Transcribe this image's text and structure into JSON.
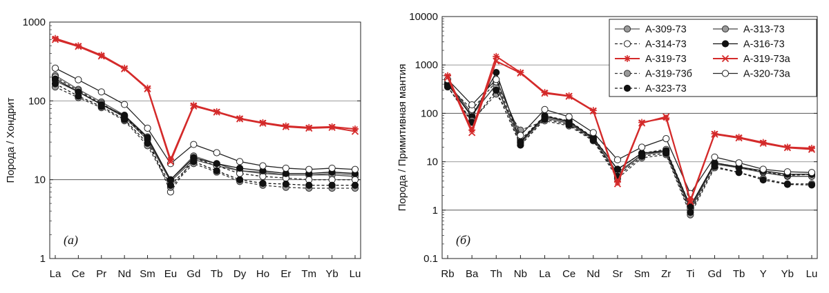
{
  "figure": {
    "panels": [
      "(a)",
      "(б)"
    ]
  },
  "chart_data": [
    {
      "type": "line",
      "panel_label": "(a)",
      "ylabel": "Порода / Хондрит",
      "y_scale": "log",
      "ylim": [
        1,
        1000
      ],
      "y_ticks": [
        "1",
        "10",
        "100",
        "1000"
      ],
      "grid": "horizontal at decades",
      "categories": [
        "La",
        "Ce",
        "Pr",
        "Nd",
        "Sm",
        "Eu",
        "Gd",
        "Tb",
        "Dy",
        "Ho",
        "Er",
        "Tm",
        "Yb",
        "Lu"
      ],
      "series": [
        {
          "name": "A-309-73",
          "color": "#555555",
          "marker": "circle-gray",
          "dash": "solid",
          "values": [
            210,
            140,
            97,
            66,
            35,
            10,
            20,
            16,
            13,
            12.5,
            11.5,
            11.5,
            12,
            11.5
          ]
        },
        {
          "name": "A-313-73",
          "color": "#444444",
          "marker": "circle-gray",
          "dash": "solid",
          "values": [
            180,
            130,
            90,
            62,
            32,
            9.5,
            18,
            15,
            13,
            12,
            11.5,
            11.5,
            11.5,
            11
          ]
        },
        {
          "name": "A-314-73",
          "color": "#222222",
          "marker": "circle-white",
          "dash": "dashed",
          "values": [
            200,
            135,
            93,
            63,
            33,
            7,
            19,
            15,
            12,
            11,
            10.5,
            10,
            10,
            10
          ]
        },
        {
          "name": "A-316-73",
          "color": "#111111",
          "marker": "circle-black",
          "dash": "solid",
          "values": [
            190,
            130,
            90,
            65,
            34,
            10,
            19,
            16,
            14,
            13,
            12,
            12,
            12.5,
            12
          ]
        },
        {
          "name": "A-319-73",
          "color": "#d42a2a",
          "marker": "star",
          "dash": "solid",
          "values": [
            620,
            500,
            380,
            260,
            145,
            18,
            88,
            73,
            60,
            53,
            48,
            46,
            47,
            44
          ]
        },
        {
          "name": "A-319-73a",
          "color": "#d42a2a",
          "marker": "x",
          "dash": "solid",
          "values": [
            600,
            490,
            370,
            255,
            142,
            17,
            86,
            72,
            59,
            52,
            47,
            45,
            46,
            41
          ]
        },
        {
          "name": "A-319-73б",
          "color": "#333333",
          "marker": "circle-gray",
          "dash": "dashed",
          "values": [
            150,
            110,
            82,
            56,
            27,
            8,
            16,
            12.5,
            9.5,
            8.5,
            8,
            7.8,
            7.8,
            7.8
          ]
        },
        {
          "name": "A-320-73a",
          "color": "#222222",
          "marker": "circle-white",
          "dash": "solid",
          "values": [
            260,
            185,
            130,
            90,
            45,
            16,
            28,
            22,
            17,
            15,
            14,
            13.5,
            14,
            13.5
          ]
        },
        {
          "name": "A-323-73",
          "color": "#111111",
          "marker": "circle-black",
          "dash": "dashed",
          "values": [
            165,
            115,
            85,
            58,
            29,
            8.5,
            17,
            13,
            10,
            9,
            8.8,
            8.5,
            8.5,
            8.5
          ]
        }
      ]
    },
    {
      "type": "line",
      "panel_label": "(б)",
      "ylabel": "Порода / Примитивная мантия",
      "y_scale": "log",
      "ylim": [
        0.1,
        10000
      ],
      "y_ticks": [
        "0.1",
        "1",
        "10",
        "100",
        "1000",
        "10000"
      ],
      "grid": "horizontal at decades",
      "legend": {
        "placement": "top-right",
        "columns": 2
      },
      "categories": [
        "Rb",
        "Ba",
        "Th",
        "Nb",
        "La",
        "Ce",
        "Nd",
        "Sr",
        "Sm",
        "Zr",
        "Ti",
        "Gd",
        "Tb",
        "Y",
        "Yb",
        "Lu"
      ],
      "series": [
        {
          "name": "A-309-73",
          "color": "#555555",
          "marker": "circle-gray",
          "dash": "solid",
          "values": [
            420,
            90,
            400,
            25,
            85,
            65,
            30,
            6,
            14,
            17,
            1.1,
            9,
            7.5,
            6,
            5,
            5
          ]
        },
        {
          "name": "A-313-73",
          "color": "#444444",
          "marker": "circle-gray",
          "dash": "solid",
          "values": [
            430,
            100,
            380,
            24,
            80,
            62,
            29,
            5.5,
            14,
            16,
            1.0,
            9,
            7.5,
            6,
            5,
            5
          ]
        },
        {
          "name": "A-314-73",
          "color": "#222222",
          "marker": "circle-white",
          "dash": "dashed",
          "values": [
            380,
            120,
            450,
            28,
            90,
            70,
            32,
            7,
            15,
            18,
            1.2,
            9.5,
            7.8,
            6.2,
            5.2,
            5.5
          ]
        },
        {
          "name": "A-316-73",
          "color": "#111111",
          "marker": "circle-black",
          "dash": "solid",
          "values": [
            400,
            85,
            700,
            26,
            88,
            68,
            31,
            7,
            15,
            17,
            1.2,
            9.5,
            7.8,
            6.5,
            5.5,
            5.5
          ]
        },
        {
          "name": "A-319-73",
          "color": "#d42a2a",
          "marker": "star",
          "dash": "solid",
          "values": [
            600,
            45,
            1500,
            700,
            270,
            230,
            115,
            3.8,
            65,
            80,
            1.6,
            38,
            32,
            25,
            20,
            19
          ]
        },
        {
          "name": "A-319-73a",
          "color": "#d42a2a",
          "marker": "x",
          "dash": "solid",
          "values": [
            550,
            40,
            1200,
            680,
            260,
            225,
            112,
            3.5,
            63,
            85,
            1.5,
            37,
            31,
            24,
            19.5,
            18
          ]
        },
        {
          "name": "A-319-73б",
          "color": "#333333",
          "marker": "circle-gray",
          "dash": "dashed",
          "values": [
            350,
            70,
            250,
            45,
            70,
            55,
            27,
            4.5,
            12,
            14,
            0.8,
            7.5,
            6,
            4.5,
            3.5,
            3.5
          ]
        },
        {
          "name": "A-320-73a",
          "color": "#222222",
          "marker": "circle-white",
          "dash": "solid",
          "values": [
            500,
            150,
            500,
            35,
            120,
            85,
            40,
            11,
            20,
            30,
            2.2,
            12.5,
            9.5,
            7,
            6.2,
            6
          ]
        },
        {
          "name": "A-323-73",
          "color": "#111111",
          "marker": "circle-black",
          "dash": "dashed",
          "values": [
            360,
            65,
            300,
            22,
            75,
            58,
            28,
            5,
            13,
            15,
            0.9,
            8,
            6,
            4.2,
            3.4,
            3.3
          ]
        }
      ]
    }
  ]
}
